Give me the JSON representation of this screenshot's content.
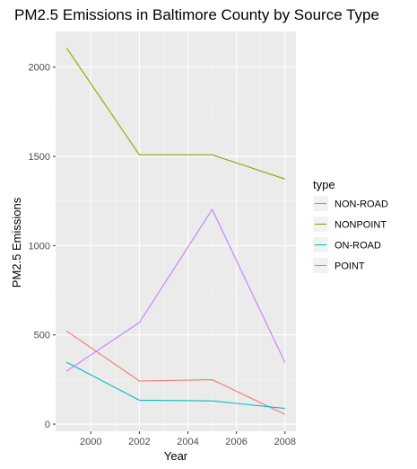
{
  "chart_data": {
    "type": "line",
    "title": "PM2.5 Emissions in Baltimore County by Source Type",
    "xlabel": "Year",
    "ylabel": "PM2.5 Emissions",
    "x": [
      1999,
      2002,
      2005,
      2008
    ],
    "xticks": [
      2000,
      2002,
      2004,
      2006,
      2008
    ],
    "xlim": [
      1998.55,
      2008.45
    ],
    "yticks": [
      0,
      500,
      1000,
      1500,
      2000
    ],
    "ylim": [
      -40,
      2200
    ],
    "grid": true,
    "legend": {
      "title": "type",
      "placement": "right"
    },
    "series": [
      {
        "name": "NON-ROAD",
        "color": "#F8766D",
        "values": [
          522,
          242,
          249,
          55
        ]
      },
      {
        "name": "NONPOINT",
        "color": "#7CAE00",
        "values": [
          2108,
          1509,
          1509,
          1373
        ]
      },
      {
        "name": "ON-ROAD",
        "color": "#00BFC4",
        "values": [
          347,
          134,
          130,
          88
        ]
      },
      {
        "name": "POINT",
        "color": "#C77CFF",
        "values": [
          297,
          569,
          1203,
          345
        ]
      }
    ]
  }
}
